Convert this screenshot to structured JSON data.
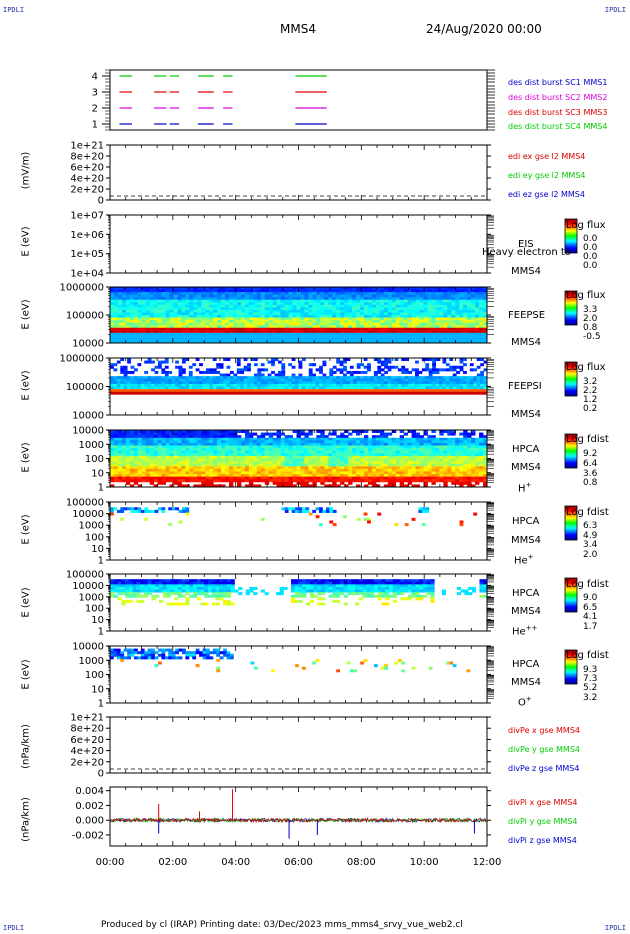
{
  "corners": {
    "tl": "IPDLI",
    "tr": "IPDLI",
    "bl": "IPDLI",
    "br": "IPDLI"
  },
  "header": {
    "spacecraft": "MMS4",
    "date": "24/Aug/2020 00:00"
  },
  "footer": "Produced by cl (IRAP)   Printing date: 03/Dec/2023   mms_mms4_srvy_vue_web2.cl",
  "colors": {
    "red": "#dd0000",
    "magenta": "#dd00dd",
    "green": "#00cc00",
    "blue": "#0000cc"
  },
  "chart_data": [
    {
      "type": "line",
      "panel": "burst",
      "yticks": [
        "4",
        "3",
        "2",
        "1"
      ],
      "legend": [
        "des dist burst SC1 MMS1",
        "des dist burst SC2 MMS2",
        "des dist burst SC3 MMS3",
        "des dist burst SC4 MMS4"
      ],
      "series": [
        {
          "sc": 4,
          "intervals": [
            [
              0.3,
              0.7
            ],
            [
              1.4,
              1.8
            ],
            [
              1.9,
              2.2
            ],
            [
              2.8,
              3.3
            ],
            [
              3.6,
              3.9
            ],
            [
              5.9,
              6.9
            ]
          ]
        },
        {
          "sc": 3,
          "intervals": [
            [
              0.3,
              0.7
            ],
            [
              1.4,
              1.8
            ],
            [
              1.9,
              2.2
            ],
            [
              2.8,
              3.3
            ],
            [
              3.6,
              3.9
            ],
            [
              5.9,
              6.9
            ]
          ]
        },
        {
          "sc": 2,
          "intervals": [
            [
              0.3,
              0.7
            ],
            [
              1.4,
              1.8
            ],
            [
              1.9,
              2.2
            ],
            [
              2.8,
              3.3
            ],
            [
              3.6,
              3.9
            ],
            [
              5.9,
              6.9
            ]
          ]
        },
        {
          "sc": 1,
          "intervals": [
            [
              0.3,
              0.7
            ],
            [
              1.4,
              1.8
            ],
            [
              1.9,
              2.2
            ],
            [
              2.8,
              3.3
            ],
            [
              3.6,
              3.9
            ],
            [
              5.9,
              6.9
            ]
          ]
        }
      ]
    },
    {
      "type": "line",
      "panel": "edi",
      "ylabel": "(mV/m)",
      "yticks": [
        "1e+21",
        "8e+20",
        "6e+20",
        "4e+20",
        "2e+20",
        "0"
      ],
      "legend": [
        "edi ex gse l2 MMS4",
        "edi ey gse l2 MMS4",
        "edi ez gse l2 MMS4"
      ]
    },
    {
      "type": "heatmap",
      "panel": "eis",
      "ylabel": "E (eV)",
      "yticks": [
        "1e+07",
        "1e+06",
        "1e+05",
        "1e+04"
      ],
      "instrument": "EIS",
      "spacecraft": "MMS4",
      "overlay": "Heavy electron to",
      "colorbar": {
        "title": "Log flux",
        "ticks": [
          "0.0",
          "0.0",
          "0.0",
          "0.0"
        ]
      }
    },
    {
      "type": "heatmap",
      "panel": "feepse",
      "ylabel": "E (eV)",
      "yticks": [
        "1000000",
        "100000",
        "10000"
      ],
      "instrument": "FEEPSE",
      "spacecraft": "MMS4",
      "colorbar": {
        "title": "Log flux",
        "ticks": [
          "3.3",
          "2.0",
          "0.8",
          "-0.5"
        ]
      }
    },
    {
      "type": "heatmap",
      "panel": "feepsi",
      "ylabel": "E (eV)",
      "yticks": [
        "1000000",
        "100000",
        "10000"
      ],
      "instrument": "FEEPSI",
      "spacecraft": "MMS4",
      "colorbar": {
        "title": "Log flux",
        "ticks": [
          "3.2",
          "2.2",
          "1.2",
          "0.2"
        ]
      }
    },
    {
      "type": "heatmap",
      "panel": "hpca_h",
      "ylabel": "E (eV)",
      "yticks": [
        "10000",
        "1000",
        "100",
        "10",
        "1"
      ],
      "instrument": "HPCA",
      "spacecraft": "MMS4",
      "species": "H",
      "charge": "+",
      "colorbar": {
        "title": "Log fdist",
        "ticks": [
          "9.2",
          "6.4",
          "3.6",
          "0.8"
        ]
      }
    },
    {
      "type": "heatmap",
      "panel": "hpca_he1",
      "ylabel": "E (eV)",
      "yticks": [
        "100000",
        "10000",
        "1000",
        "100",
        "10",
        "1"
      ],
      "instrument": "HPCA",
      "spacecraft": "MMS4",
      "species": "He",
      "charge": "+",
      "colorbar": {
        "title": "Log fdist",
        "ticks": [
          "6.3",
          "4.9",
          "3.4",
          "2.0"
        ]
      }
    },
    {
      "type": "heatmap",
      "panel": "hpca_he2",
      "ylabel": "E (eV)",
      "yticks": [
        "100000",
        "10000",
        "1000",
        "100",
        "10",
        "1"
      ],
      "instrument": "HPCA",
      "spacecraft": "MMS4",
      "species": "He",
      "charge": "++",
      "colorbar": {
        "title": "Log fdist",
        "ticks": [
          "9.0",
          "6.5",
          "4.1",
          "1.7"
        ]
      }
    },
    {
      "type": "heatmap",
      "panel": "hpca_o",
      "ylabel": "E (eV)",
      "yticks": [
        "10000",
        "1000",
        "100",
        "10",
        "1"
      ],
      "instrument": "HPCA",
      "spacecraft": "MMS4",
      "species": "O",
      "charge": "+",
      "colorbar": {
        "title": "Log fdist",
        "ticks": [
          "9.3",
          "7.3",
          "5.2",
          "3.2"
        ]
      }
    },
    {
      "type": "line",
      "panel": "divpe",
      "ylabel": "(nPa/km)",
      "yticks": [
        "1e+21",
        "8e+20",
        "6e+20",
        "4e+20",
        "2e+20",
        "0"
      ],
      "legend": [
        "divPe x gse MMS4",
        "divPe y gse MMS4",
        "divPe z gse MMS4"
      ]
    },
    {
      "type": "line",
      "panel": "divpi",
      "ylabel": "(nPa/km)",
      "yticks": [
        "0.004",
        "0.002",
        "0.000",
        "-0.002"
      ],
      "ylim": [
        -0.0035,
        0.0045
      ],
      "legend": [
        "divPi x gse MMS4",
        "divPi y gse MMS4",
        "divPi z gse MMS4"
      ],
      "spikes": [
        {
          "t": 1.55,
          "series": "x",
          "value": 0.0022
        },
        {
          "t": 2.85,
          "series": "x",
          "value": 0.0012
        },
        {
          "t": 3.9,
          "series": "x",
          "value": 0.0042
        },
        {
          "t": 1.55,
          "series": "z",
          "value": -0.0018
        },
        {
          "t": 5.7,
          "series": "z",
          "value": -0.0025
        },
        {
          "t": 6.6,
          "series": "z",
          "value": -0.002
        },
        {
          "t": 11.6,
          "series": "z",
          "value": -0.0018
        }
      ]
    }
  ],
  "xaxis": {
    "ticks": [
      "00:00",
      "02:00",
      "04:00",
      "06:00",
      "08:00",
      "10:00",
      "12:00"
    ],
    "range_hours": [
      0,
      12
    ]
  }
}
